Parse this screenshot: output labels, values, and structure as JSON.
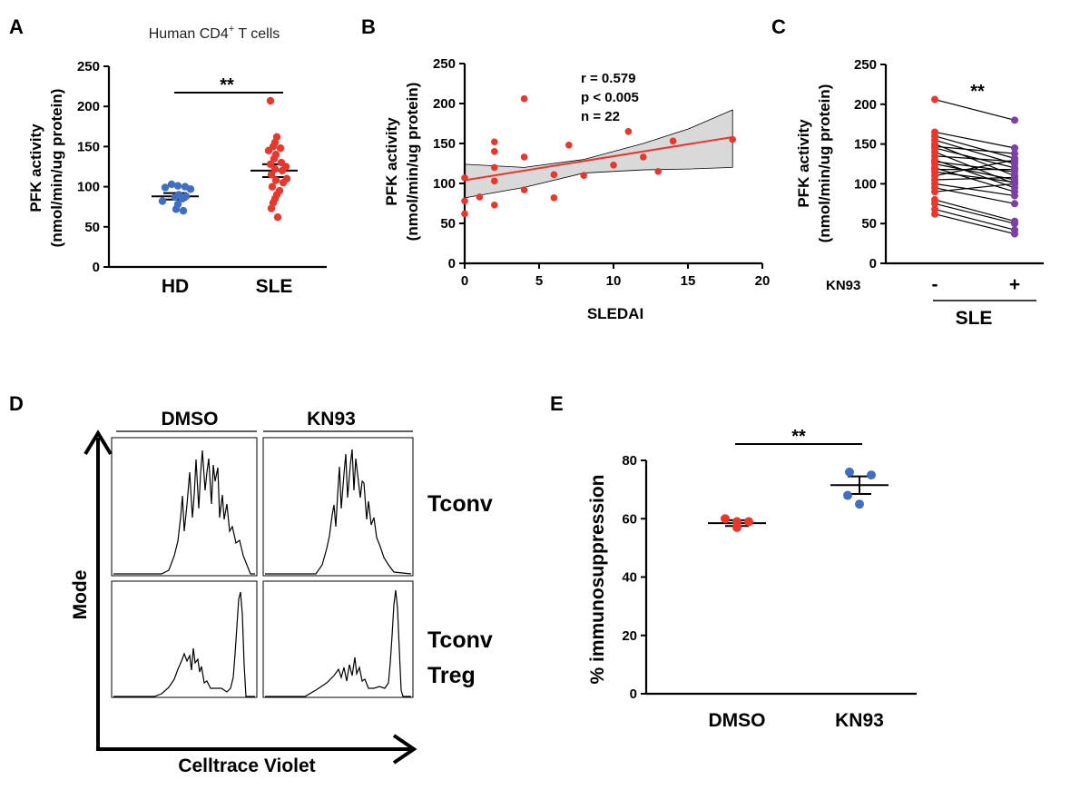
{
  "chart_data": [
    {
      "panel": "A",
      "type": "scatter",
      "title": "Human CD4+ T cells",
      "title_main": "Human CD4",
      "title_sup": "+",
      "title_rest": " T cells",
      "ylabel_line1": "PFK activity",
      "ylabel_line2": "(nmol/min/ug protein)",
      "ylim": [
        0,
        250
      ],
      "yticks": [
        "0",
        "50",
        "100",
        "150",
        "200",
        "250"
      ],
      "categories": [
        "HD",
        "SLE"
      ],
      "series": [
        {
          "name": "HD",
          "color": "#3f6fc2",
          "mean": 88,
          "sem": 4,
          "values": [
            103,
            101,
            100,
            99,
            97,
            90,
            88,
            87,
            85,
            82,
            78,
            72,
            70
          ]
        },
        {
          "name": "SLE",
          "color": "#e8372d",
          "mean": 120,
          "sem": 8,
          "values": [
            207,
            162,
            155,
            150,
            148,
            145,
            140,
            135,
            130,
            128,
            125,
            122,
            120,
            115,
            110,
            108,
            105,
            100,
            95,
            90,
            85,
            80,
            73,
            62
          ]
        }
      ],
      "significance": "**"
    },
    {
      "panel": "B",
      "type": "scatter",
      "xlabel": "SLEDAI",
      "ylabel_line1": "PFK activity",
      "ylabel_line2": "(nmol/min/ug protein)",
      "xlim": [
        0,
        20
      ],
      "ylim": [
        0,
        250
      ],
      "xticks": [
        "0",
        "5",
        "10",
        "15",
        "20"
      ],
      "yticks": [
        "0",
        "50",
        "100",
        "150",
        "200",
        "250"
      ],
      "stats": [
        "r = 0.579",
        "p < 0.005",
        "n = 22"
      ],
      "point_color": "#e8372d",
      "line_color": "#e8372d",
      "band_color": "#d9d9d9",
      "points": [
        [
          0,
          107
        ],
        [
          0,
          78
        ],
        [
          0,
          62
        ],
        [
          1,
          83
        ],
        [
          2,
          152
        ],
        [
          2,
          140
        ],
        [
          2,
          120
        ],
        [
          2,
          103
        ],
        [
          2,
          73
        ],
        [
          4,
          206
        ],
        [
          4,
          133
        ],
        [
          4,
          92
        ],
        [
          6,
          111
        ],
        [
          6,
          82
        ],
        [
          7,
          148
        ],
        [
          8,
          110
        ],
        [
          10,
          123
        ],
        [
          11,
          165
        ],
        [
          12,
          133
        ],
        [
          13,
          115
        ],
        [
          14,
          153
        ],
        [
          18,
          155
        ]
      ],
      "fit": {
        "x": [
          0,
          18
        ],
        "y": [
          104,
          158
        ]
      },
      "band_upper": [
        [
          0,
          124
        ],
        [
          4,
          120
        ],
        [
          8,
          130
        ],
        [
          12,
          150
        ],
        [
          15,
          168
        ],
        [
          18,
          192
        ]
      ],
      "band_lower": [
        [
          0,
          82
        ],
        [
          4,
          95
        ],
        [
          8,
          113
        ],
        [
          12,
          117
        ],
        [
          15,
          118
        ],
        [
          18,
          120
        ]
      ]
    },
    {
      "panel": "C",
      "type": "paired",
      "ylabel_line1": "PFK activity",
      "ylabel_line2": "(nmol/min/ug protein)",
      "ylim": [
        0,
        250
      ],
      "yticks": [
        "0",
        "50",
        "100",
        "150",
        "200",
        "250"
      ],
      "treatment_label": "KN93",
      "categories": [
        "-",
        "+"
      ],
      "group_label": "SLE",
      "before_color": "#e8372d",
      "after_color": "#7b3fa6",
      "pairs": [
        [
          206,
          180
        ],
        [
          165,
          145
        ],
        [
          160,
          132
        ],
        [
          155,
          125
        ],
        [
          150,
          110
        ],
        [
          147,
          138
        ],
        [
          145,
          120
        ],
        [
          140,
          100
        ],
        [
          135,
          128
        ],
        [
          130,
          95
        ],
        [
          128,
          115
        ],
        [
          125,
          105
        ],
        [
          120,
          90
        ],
        [
          118,
          118
        ],
        [
          115,
          102
        ],
        [
          110,
          130
        ],
        [
          105,
          108
        ],
        [
          100,
          85
        ],
        [
          95,
          75
        ],
        [
          90,
          100
        ],
        [
          80,
          53
        ],
        [
          75,
          50
        ],
        [
          68,
          42
        ],
        [
          62,
          37
        ]
      ],
      "significance": "**"
    },
    {
      "panel": "D",
      "type": "histogram",
      "columns": [
        "DMSO",
        "KN93"
      ],
      "rows": [
        "Tconv",
        "Tconv Treg"
      ],
      "row_labels": [
        [
          "Tconv"
        ],
        [
          "Tconv",
          "Treg"
        ]
      ],
      "xlabel": "Celltrace Violet",
      "ylabel": "Mode"
    },
    {
      "panel": "E",
      "type": "scatter",
      "ylabel": "% immunosuppression",
      "ylim": [
        0,
        80
      ],
      "yticks": [
        "0",
        "20",
        "40",
        "60",
        "80"
      ],
      "categories": [
        "DMSO",
        "KN93"
      ],
      "series": [
        {
          "name": "DMSO",
          "color": "#e8372d",
          "mean": 58.5,
          "sem": 1,
          "values": [
            60,
            59,
            59,
            57
          ]
        },
        {
          "name": "KN93",
          "color": "#3f6fc2",
          "mean": 71.5,
          "sem": 3,
          "values": [
            76,
            75,
            68,
            65
          ]
        }
      ],
      "significance": "**"
    }
  ]
}
